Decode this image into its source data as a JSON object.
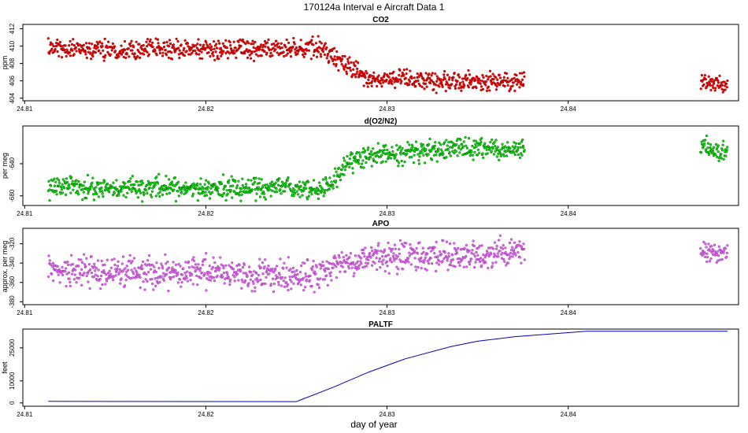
{
  "figure": {
    "title": "170124a   Interval e Aircraft Data 1",
    "xlabel": "day of year"
  },
  "chart_data": [
    {
      "type": "scatter",
      "title": "CO2",
      "ylabel": "ppm",
      "color": "#ff0000",
      "edge_color": "#880000",
      "xlim": [
        24.8099,
        24.8494
      ],
      "ylim": [
        403.7,
        412.5
      ],
      "x_ticks": [
        24.81,
        24.82,
        24.83,
        24.84
      ],
      "y_ticks": [
        404,
        406,
        408,
        410,
        412
      ],
      "segments": [
        {
          "x_start": 24.8113,
          "x_end": 24.8376,
          "trend": [
            [
              24.8113,
              409.7
            ],
            [
              24.825,
              409.6
            ],
            [
              24.8265,
              409.8
            ],
            [
              24.8275,
              408.0
            ],
            [
              24.829,
              406.3
            ],
            [
              24.831,
              406.2
            ],
            [
              24.832,
              405.9
            ],
            [
              24.833,
              405.8
            ],
            [
              24.8376,
              406.0
            ]
          ],
          "noise": 0.55
        },
        {
          "x_start": 24.8473,
          "x_end": 24.8488,
          "trend": [
            [
              24.8473,
              405.9
            ],
            [
              24.8488,
              405.6
            ]
          ],
          "noise": 0.45
        }
      ]
    },
    {
      "type": "scatter",
      "title": "d(O2/N2)",
      "ylabel": "per meg",
      "color": "#00ee00",
      "edge_color": "#005500",
      "xlim": [
        24.8099,
        24.8494
      ],
      "ylim": [
        -692,
        -593
      ],
      "x_ticks": [
        24.81,
        24.82,
        24.83,
        24.84
      ],
      "y_ticks": [
        -680,
        -640
      ],
      "y_tick_labels": [
        "-680",
        "-640"
      ],
      "segments": [
        {
          "x_start": 24.8113,
          "x_end": 24.8376,
          "trend": [
            [
              24.8113,
              -670
            ],
            [
              24.8255,
              -671
            ],
            [
              24.8265,
              -672
            ],
            [
              24.828,
              -640
            ],
            [
              24.8295,
              -627
            ],
            [
              24.832,
              -626
            ],
            [
              24.834,
              -620
            ],
            [
              24.8376,
              -624
            ]
          ],
          "noise": 6.5
        },
        {
          "x_start": 24.8473,
          "x_end": 24.8488,
          "trend": [
            [
              24.8473,
              -620
            ],
            [
              24.8488,
              -625
            ]
          ],
          "noise": 6
        }
      ]
    },
    {
      "type": "scatter",
      "title": "APO",
      "ylabel": "approx. per meg",
      "color": "#ee66ee",
      "edge_color": "#8833aa",
      "xlim": [
        24.8099,
        24.8494
      ],
      "ylim": [
        -383,
        -304
      ],
      "x_ticks": [
        24.81,
        24.82,
        24.83,
        24.84
      ],
      "y_ticks": [
        -380,
        -360,
        -340,
        -320
      ],
      "y_tick_labels": [
        "-380",
        "-360",
        "-340",
        "-320"
      ],
      "segments": [
        {
          "x_start": 24.8113,
          "x_end": 24.8376,
          "trend": [
            [
              24.8113,
              -350
            ],
            [
              24.82,
              -349
            ],
            [
              24.8255,
              -354
            ],
            [
              24.827,
              -344
            ],
            [
              24.8295,
              -333
            ],
            [
              24.833,
              -333
            ],
            [
              24.8376,
              -329
            ]
          ],
          "noise": 7.5
        },
        {
          "x_start": 24.8473,
          "x_end": 24.8488,
          "trend": [
            [
              24.8473,
              -327
            ],
            [
              24.8488,
              -332
            ]
          ],
          "noise": 6
        }
      ]
    },
    {
      "type": "line",
      "title": "PALTF",
      "ylabel": "feet",
      "color": "#0000cc",
      "xlim": [
        24.8099,
        24.8494
      ],
      "ylim": [
        -1500,
        33500
      ],
      "x_ticks": [
        24.81,
        24.82,
        24.83,
        24.84
      ],
      "y_ticks": [
        0,
        10000,
        25000
      ],
      "y_tick_labels": [
        "0",
        "10000",
        "25000"
      ],
      "points": [
        [
          24.8113,
          700
        ],
        [
          24.825,
          600
        ],
        [
          24.827,
          7000
        ],
        [
          24.829,
          14000
        ],
        [
          24.831,
          20000
        ],
        [
          24.8335,
          25500
        ],
        [
          24.835,
          28000
        ],
        [
          24.837,
          30000
        ],
        [
          24.841,
          32500
        ],
        [
          24.8488,
          32500
        ]
      ]
    }
  ]
}
